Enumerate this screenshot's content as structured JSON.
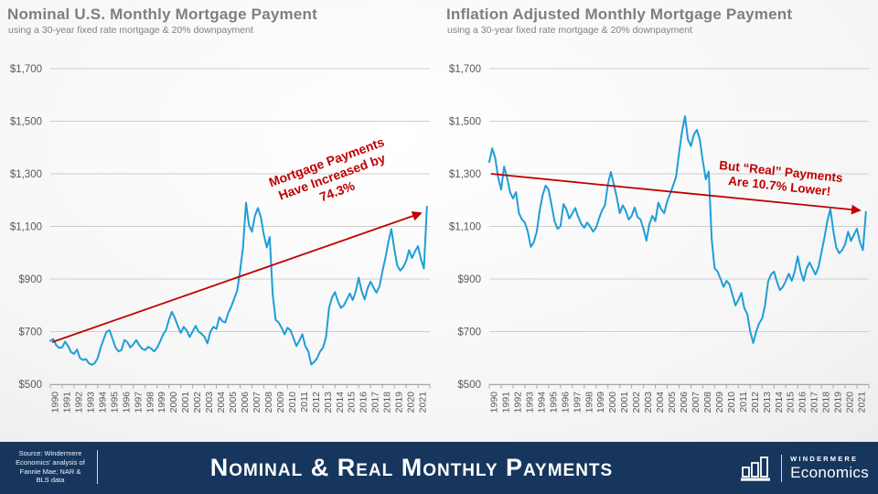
{
  "colors": {
    "line_blue": "#1f9dd8",
    "trend_red": "#c00000",
    "grid": "#cdcdcd",
    "axis_line": "#a6a6a6",
    "axis_text": "#595959",
    "title_gray": "#7f7f7f",
    "footer_navy": "#17365d"
  },
  "chart_data": [
    {
      "type": "line",
      "title": "Nominal U.S. Monthly Mortgage Payment",
      "subtitle": "using a 30-year fixed rate mortgage & 20% downpayment",
      "ylim": [
        500,
        1700
      ],
      "yticks": [
        500,
        700,
        900,
        1100,
        1300,
        1500,
        1700
      ],
      "ytick_labels": [
        "$500",
        "$700",
        "$900",
        "$1,100",
        "$1,300",
        "$1,500",
        "$1,700"
      ],
      "years": [
        "1990",
        "1991",
        "1992",
        "1993",
        "1994",
        "1995",
        "1996",
        "1997",
        "1998",
        "1999",
        "2000",
        "2001",
        "2002",
        "2003",
        "2004",
        "2005",
        "2006",
        "2007",
        "2008",
        "2009",
        "2010",
        "2011",
        "2012",
        "2013",
        "2014",
        "2015",
        "2016",
        "2017",
        "2018",
        "2019",
        "2020",
        "2021"
      ],
      "x_frequency": "quarterly",
      "values": [
        665,
        672,
        648,
        638,
        640,
        662,
        645,
        622,
        615,
        632,
        600,
        592,
        596,
        580,
        574,
        580,
        600,
        640,
        672,
        700,
        705,
        672,
        640,
        625,
        630,
        668,
        660,
        640,
        652,
        668,
        648,
        635,
        630,
        642,
        636,
        625,
        638,
        662,
        688,
        705,
        745,
        775,
        752,
        722,
        695,
        718,
        705,
        680,
        700,
        722,
        700,
        692,
        680,
        655,
        700,
        718,
        710,
        755,
        740,
        735,
        770,
        795,
        825,
        855,
        930,
        1020,
        1190,
        1105,
        1080,
        1140,
        1170,
        1135,
        1070,
        1020,
        1060,
        840,
        745,
        735,
        715,
        690,
        715,
        705,
        675,
        645,
        665,
        690,
        645,
        625,
        575,
        585,
        600,
        625,
        640,
        680,
        790,
        830,
        850,
        815,
        790,
        800,
        822,
        845,
        820,
        852,
        905,
        855,
        822,
        865,
        890,
        868,
        848,
        872,
        928,
        980,
        1040,
        1090,
        1015,
        952,
        932,
        945,
        968,
        1010,
        980,
        1005,
        1025,
        975,
        940,
        1175
      ],
      "trend": {
        "start": 660,
        "end": 1150
      },
      "annotation": {
        "lines": [
          "Mortgage Payments",
          "Have Increased by",
          "74.3%"
        ]
      },
      "grid": true,
      "legend": "none"
    },
    {
      "type": "line",
      "title": "Inflation Adjusted Monthly Mortgage Payment",
      "subtitle": "using a 30-year fixed rate mortgage & 20% downpayment",
      "ylim": [
        500,
        1700
      ],
      "yticks": [
        500,
        700,
        900,
        1100,
        1300,
        1500,
        1700
      ],
      "ytick_labels": [
        "$500",
        "$700",
        "$900",
        "$1,100",
        "$1,300",
        "$1,500",
        "$1,700"
      ],
      "years": [
        "1990",
        "1991",
        "1992",
        "1993",
        "1994",
        "1995",
        "1996",
        "1997",
        "1998",
        "1999",
        "2000",
        "2001",
        "2002",
        "2003",
        "2004",
        "2005",
        "2006",
        "2007",
        "2008",
        "2009",
        "2010",
        "2011",
        "2012",
        "2013",
        "2014",
        "2015",
        "2016",
        "2017",
        "2018",
        "2019",
        "2020",
        "2021"
      ],
      "x_frequency": "quarterly",
      "values": [
        1345,
        1397,
        1360,
        1285,
        1240,
        1328,
        1285,
        1230,
        1206,
        1230,
        1150,
        1126,
        1115,
        1080,
        1022,
        1040,
        1080,
        1160,
        1220,
        1255,
        1240,
        1180,
        1120,
        1091,
        1100,
        1185,
        1165,
        1130,
        1150,
        1170,
        1135,
        1110,
        1095,
        1115,
        1100,
        1080,
        1095,
        1130,
        1161,
        1180,
        1260,
        1307,
        1260,
        1210,
        1150,
        1180,
        1160,
        1126,
        1140,
        1172,
        1135,
        1126,
        1090,
        1046,
        1110,
        1140,
        1120,
        1190,
        1165,
        1150,
        1196,
        1225,
        1255,
        1290,
        1380,
        1460,
        1519,
        1430,
        1405,
        1450,
        1467,
        1430,
        1350,
        1279,
        1308,
        1050,
        940,
        928,
        900,
        870,
        893,
        880,
        840,
        800,
        820,
        847,
        790,
        766,
        700,
        657,
        700,
        731,
        750,
        800,
        890,
        917,
        928,
        890,
        858,
        870,
        893,
        920,
        893,
        928,
        986,
        930,
        893,
        940,
        963,
        940,
        917,
        945,
        1000,
        1056,
        1120,
        1166,
        1085,
        1020,
        998,
        1010,
        1033,
        1080,
        1045,
        1070,
        1091,
        1040,
        1010,
        1155
      ],
      "trend": {
        "start": 1300,
        "end": 1161
      },
      "annotation": {
        "lines": [
          "But “Real” Payments",
          "Are 10.7% Lower!"
        ]
      },
      "grid": true,
      "legend": "none"
    }
  ],
  "footer": {
    "source_lines": [
      "Source: Windermere",
      "Economics' analysis of",
      "Fannie Mae; NAR &",
      "BLS data"
    ],
    "title": "Nominal & Real Monthly Payments",
    "logo": {
      "brand": "WINDERMERE",
      "sub": "Economics"
    }
  }
}
